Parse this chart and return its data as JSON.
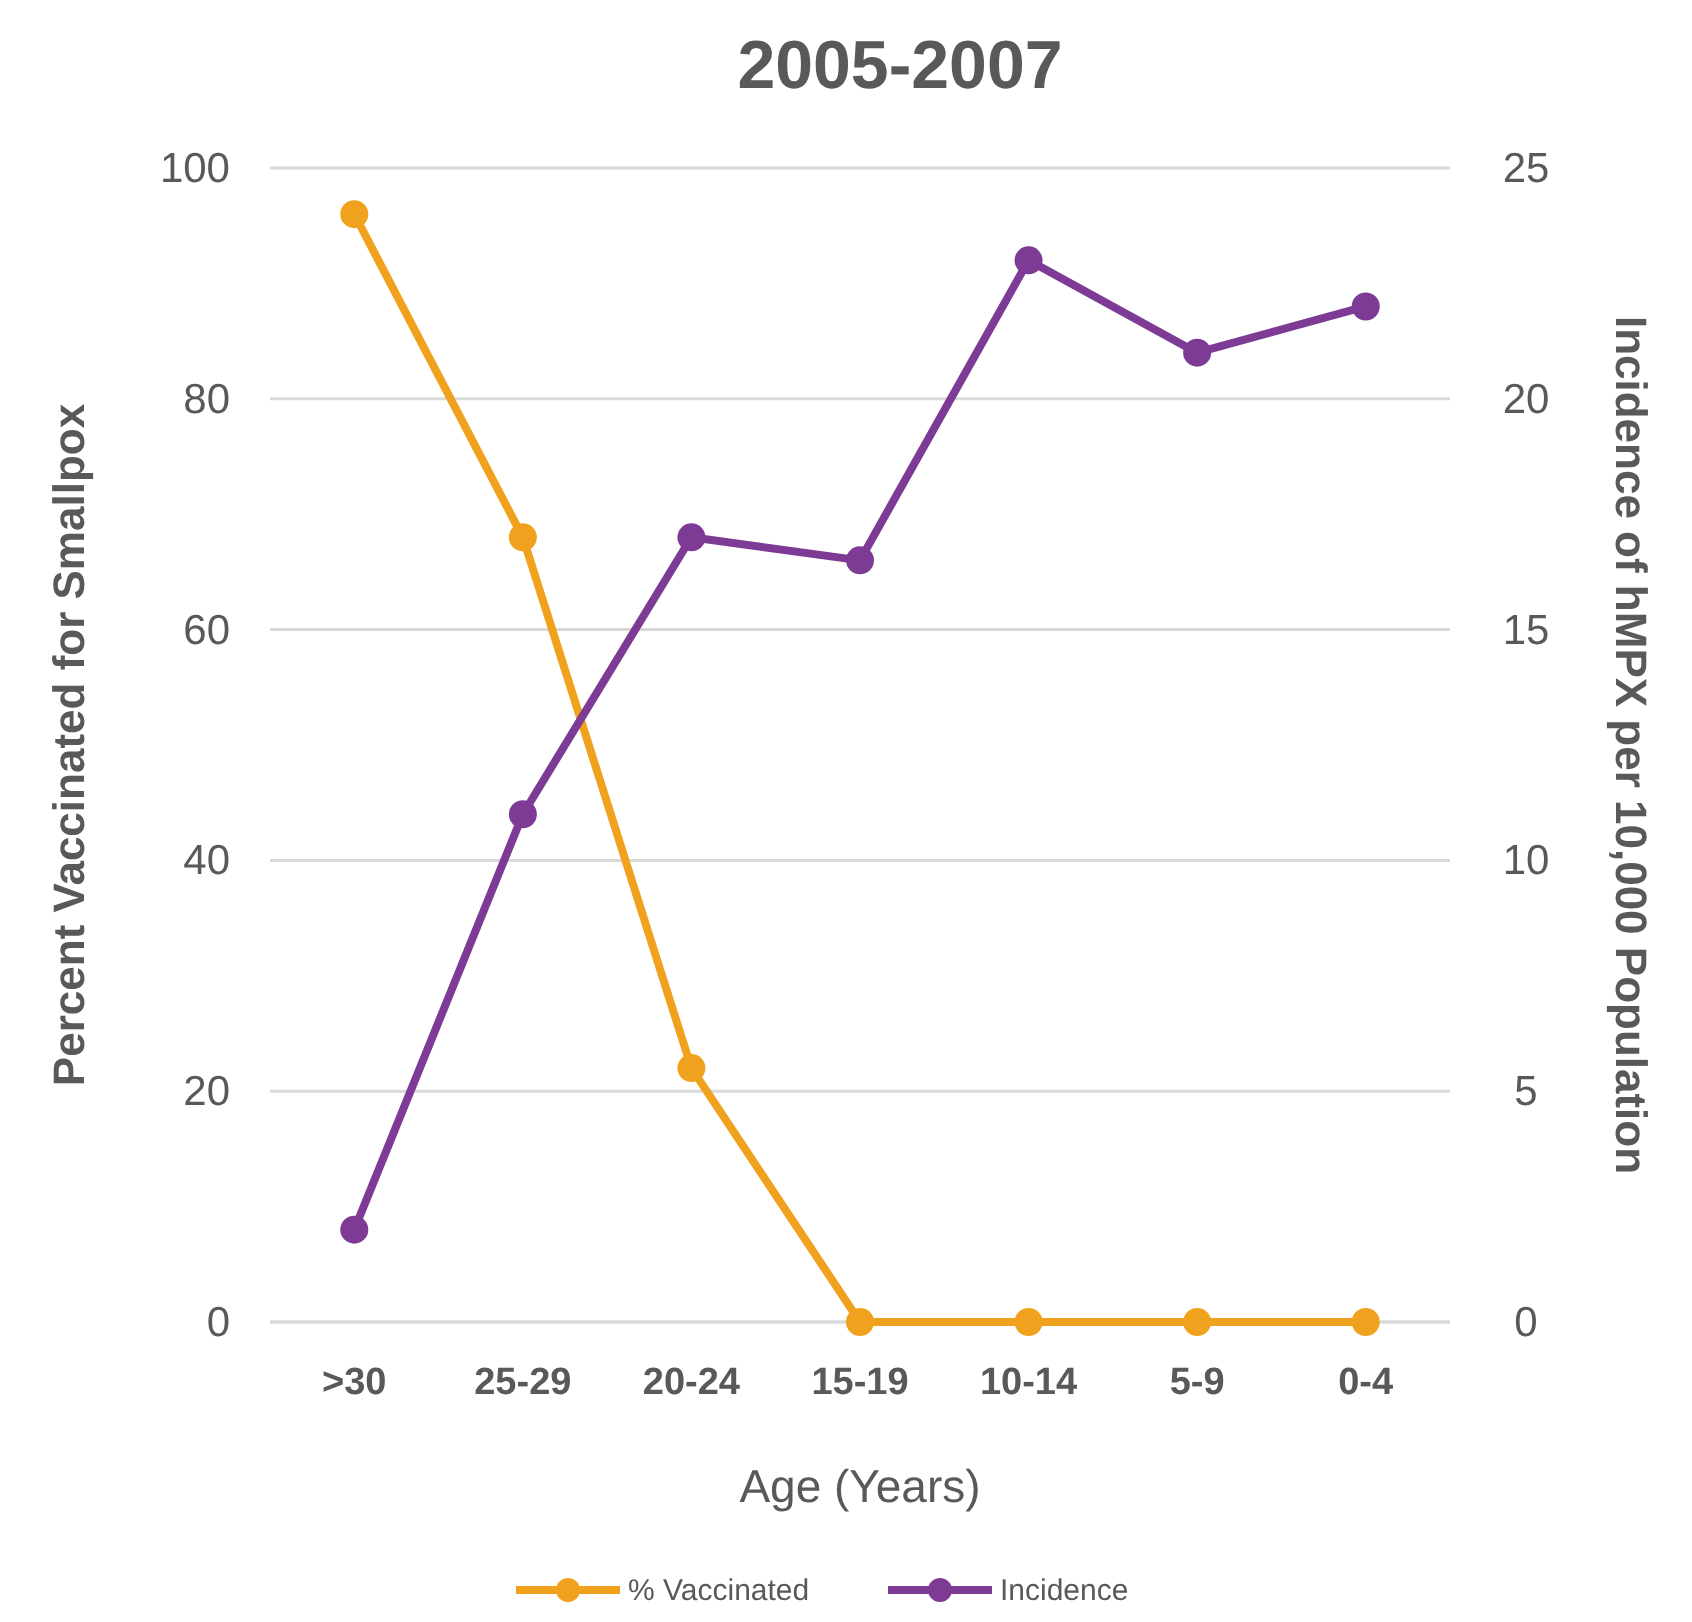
{
  "chart_data": {
    "type": "line",
    "title": "2005-2007",
    "xlabel": "Age (Years)",
    "ylabel": "Percent Vaccinated for Smallpox",
    "y2label": "Incidence of hMPX per 10,000 Population",
    "categories": [
      ">30",
      "25-29",
      "20-24",
      "15-19",
      "10-14",
      "5-9",
      "0-4"
    ],
    "series": [
      {
        "name": "% Vaccinated",
        "color": "#f0a21e",
        "values": [
          96,
          68,
          22,
          0,
          0,
          0,
          0
        ]
      },
      {
        "name": "Incidence",
        "color": "#7e3b96",
        "axis": "y2",
        "values": [
          2,
          11,
          17,
          16.5,
          23,
          21,
          22
        ]
      }
    ],
    "ylim": [
      0,
      100
    ],
    "yticks": [
      0,
      20,
      40,
      60,
      80,
      100
    ],
    "y2lim": [
      0,
      25
    ],
    "y2ticks": [
      0,
      5,
      10,
      15,
      20,
      25
    ],
    "grid": "y",
    "legend": "bottom",
    "marker": "circle",
    "line_style": "solid"
  }
}
